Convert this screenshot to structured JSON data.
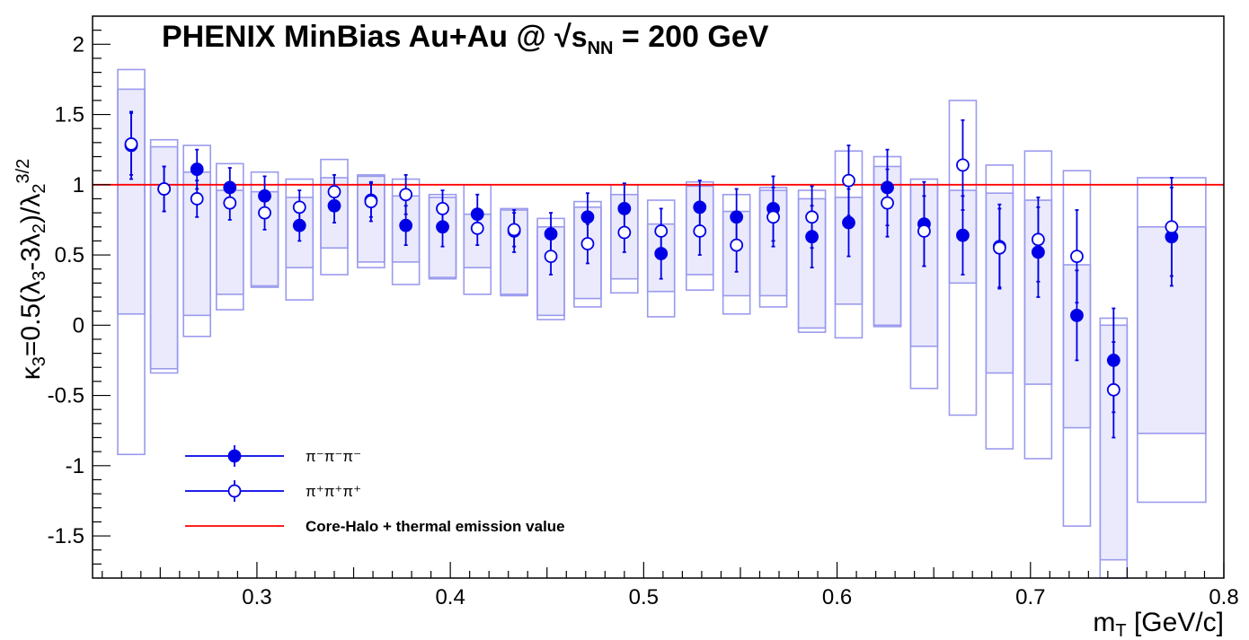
{
  "chart_data": {
    "type": "scatter",
    "title": "PHENIX MinBias Au+Au @ √s_NN = 200 GeV",
    "xlabel": "m_T [GeV/c]",
    "ylabel": "κ3=0.5(λ3-3λ2)/λ2^3/2",
    "xlim": [
      0.215,
      0.8
    ],
    "ylim": [
      -1.8,
      2.2
    ],
    "x_ticks": [
      0.3,
      0.4,
      0.5,
      0.6,
      0.7,
      0.8
    ],
    "x_tick_labels": [
      "0.3",
      "0.4",
      "0.5",
      "0.6",
      "0.7",
      "0.8"
    ],
    "y_ticks": [
      -1.5,
      -1,
      -0.5,
      0,
      0.5,
      1,
      1.5,
      2
    ],
    "y_tick_labels": [
      "-1.5",
      "-1",
      "-0.5",
      "0",
      "0.5",
      "1",
      "1.5",
      "2"
    ],
    "grid": false,
    "legend_position": "bottom-left",
    "reference_line": {
      "y": 1,
      "label": "Core-Halo + thermal emission value",
      "color": "#ff0000"
    },
    "series": [
      {
        "name": "π⁻π⁻π⁻",
        "marker": "filled-circle",
        "color": "#0000e6",
        "points": [
          {
            "x": 0.235,
            "y": 1.28,
            "err": 0.24,
            "sys_lo": 0.08,
            "sys_hi": 1.68
          },
          {
            "x": 0.252,
            "y": 0.97,
            "err": 0.16,
            "sys_lo": -0.31,
            "sys_hi": 1.27
          },
          {
            "x": 0.269,
            "y": 1.11,
            "err": 0.14,
            "sys_lo": 0.07,
            "sys_hi": 1.09
          },
          {
            "x": 0.286,
            "y": 0.98,
            "err": 0.14,
            "sys_lo": 0.22,
            "sys_hi": 0.96
          },
          {
            "x": 0.304,
            "y": 0.92,
            "err": 0.14,
            "sys_lo": 0.28,
            "sys_hi": 0.95
          },
          {
            "x": 0.322,
            "y": 0.71,
            "err": 0.11,
            "sys_lo": 0.41,
            "sys_hi": 0.91
          },
          {
            "x": 0.34,
            "y": 0.85,
            "err": 0.12,
            "sys_lo": 0.55,
            "sys_hi": 1.05
          },
          {
            "x": 0.359,
            "y": 0.89,
            "err": 0.12,
            "sys_lo": 0.45,
            "sys_hi": 1.06
          },
          {
            "x": 0.377,
            "y": 0.71,
            "err": 0.14,
            "sys_lo": 0.45,
            "sys_hi": 0.92
          },
          {
            "x": 0.396,
            "y": 0.7,
            "err": 0.14,
            "sys_lo": 0.34,
            "sys_hi": 0.91
          },
          {
            "x": 0.414,
            "y": 0.79,
            "err": 0.14,
            "sys_lo": 0.41,
            "sys_hi": 0.79
          },
          {
            "x": 0.433,
            "y": 0.67,
            "err": 0.15,
            "sys_lo": 0.22,
            "sys_hi": 0.82
          },
          {
            "x": 0.452,
            "y": 0.65,
            "err": 0.15,
            "sys_lo": 0.07,
            "sys_hi": 0.7
          },
          {
            "x": 0.471,
            "y": 0.77,
            "err": 0.17,
            "sys_lo": 0.19,
            "sys_hi": 0.84
          },
          {
            "x": 0.49,
            "y": 0.83,
            "err": 0.18,
            "sys_lo": 0.33,
            "sys_hi": 0.93
          },
          {
            "x": 0.509,
            "y": 0.51,
            "err": 0.18,
            "sys_lo": 0.24,
            "sys_hi": 0.72
          },
          {
            "x": 0.529,
            "y": 0.84,
            "err": 0.19,
            "sys_lo": 0.36,
            "sys_hi": 0.99
          },
          {
            "x": 0.548,
            "y": 0.77,
            "err": 0.2,
            "sys_lo": 0.21,
            "sys_hi": 0.81
          },
          {
            "x": 0.567,
            "y": 0.83,
            "err": 0.23,
            "sys_lo": 0.21,
            "sys_hi": 0.96
          },
          {
            "x": 0.587,
            "y": 0.63,
            "err": 0.22,
            "sys_lo": -0.02,
            "sys_hi": 0.9
          },
          {
            "x": 0.606,
            "y": 0.73,
            "err": 0.24,
            "sys_lo": 0.15,
            "sys_hi": 0.91
          },
          {
            "x": 0.626,
            "y": 0.98,
            "err": 0.27,
            "sys_lo": 0.0,
            "sys_hi": 1.13
          },
          {
            "x": 0.645,
            "y": 0.72,
            "err": 0.3,
            "sys_lo": -0.15,
            "sys_hi": 1.0
          },
          {
            "x": 0.665,
            "y": 0.64,
            "err": 0.28,
            "sys_lo": 0.3,
            "sys_hi": 0.96
          },
          {
            "x": 0.684,
            "y": 0.56,
            "err": 0.3,
            "sys_lo": -0.34,
            "sys_hi": 0.94
          },
          {
            "x": 0.704,
            "y": 0.52,
            "err": 0.32,
            "sys_lo": -0.42,
            "sys_hi": 0.89
          },
          {
            "x": 0.724,
            "y": 0.07,
            "err": 0.32,
            "sys_lo": -0.73,
            "sys_hi": 0.43
          },
          {
            "x": 0.743,
            "y": -0.25,
            "err": 0.37,
            "sys_lo": -1.67,
            "sys_hi": 0.0
          },
          {
            "x": 0.773,
            "y": 0.63,
            "err": 0.35,
            "sys_lo": -0.77,
            "sys_hi": 0.7
          }
        ]
      },
      {
        "name": "π⁺π⁺π⁺",
        "marker": "open-circle",
        "color": "#0000e6",
        "points": [
          {
            "x": 0.235,
            "y": 1.29,
            "err": 0.22,
            "sys_lo": -0.92,
            "sys_hi": 1.82
          },
          {
            "x": 0.252,
            "y": 0.97,
            "err": 0.16,
            "sys_lo": -0.34,
            "sys_hi": 1.32
          },
          {
            "x": 0.269,
            "y": 0.9,
            "err": 0.13,
            "sys_lo": -0.08,
            "sys_hi": 1.28
          },
          {
            "x": 0.286,
            "y": 0.87,
            "err": 0.12,
            "sys_lo": 0.11,
            "sys_hi": 1.15
          },
          {
            "x": 0.304,
            "y": 0.8,
            "err": 0.12,
            "sys_lo": 0.27,
            "sys_hi": 1.09
          },
          {
            "x": 0.322,
            "y": 0.84,
            "err": 0.12,
            "sys_lo": 0.18,
            "sys_hi": 1.04
          },
          {
            "x": 0.34,
            "y": 0.95,
            "err": 0.12,
            "sys_lo": 0.36,
            "sys_hi": 1.18
          },
          {
            "x": 0.359,
            "y": 0.88,
            "err": 0.14,
            "sys_lo": 0.41,
            "sys_hi": 1.07
          },
          {
            "x": 0.377,
            "y": 0.93,
            "err": 0.14,
            "sys_lo": 0.29,
            "sys_hi": 1.04
          },
          {
            "x": 0.396,
            "y": 0.83,
            "err": 0.13,
            "sys_lo": 0.33,
            "sys_hi": 0.93
          },
          {
            "x": 0.414,
            "y": 0.69,
            "err": 0.12,
            "sys_lo": 0.22,
            "sys_hi": 1.0
          },
          {
            "x": 0.433,
            "y": 0.68,
            "err": 0.12,
            "sys_lo": 0.21,
            "sys_hi": 0.83
          },
          {
            "x": 0.452,
            "y": 0.49,
            "err": 0.13,
            "sys_lo": 0.04,
            "sys_hi": 0.76
          },
          {
            "x": 0.471,
            "y": 0.58,
            "err": 0.14,
            "sys_lo": 0.13,
            "sys_hi": 0.88
          },
          {
            "x": 0.49,
            "y": 0.66,
            "err": 0.14,
            "sys_lo": 0.23,
            "sys_hi": 1.0
          },
          {
            "x": 0.509,
            "y": 0.67,
            "err": 0.16,
            "sys_lo": 0.06,
            "sys_hi": 0.89
          },
          {
            "x": 0.529,
            "y": 0.67,
            "err": 0.17,
            "sys_lo": 0.25,
            "sys_hi": 1.02
          },
          {
            "x": 0.548,
            "y": 0.57,
            "err": 0.19,
            "sys_lo": 0.08,
            "sys_hi": 0.93
          },
          {
            "x": 0.567,
            "y": 0.77,
            "err": 0.21,
            "sys_lo": 0.13,
            "sys_hi": 0.98
          },
          {
            "x": 0.587,
            "y": 0.77,
            "err": 0.22,
            "sys_lo": -0.05,
            "sys_hi": 0.96
          },
          {
            "x": 0.606,
            "y": 1.03,
            "err": 0.25,
            "sys_lo": -0.09,
            "sys_hi": 1.24
          },
          {
            "x": 0.626,
            "y": 0.87,
            "err": 0.24,
            "sys_lo": -0.01,
            "sys_hi": 1.2
          },
          {
            "x": 0.645,
            "y": 0.67,
            "err": 0.25,
            "sys_lo": -0.45,
            "sys_hi": 1.04
          },
          {
            "x": 0.665,
            "y": 1.14,
            "err": 0.32,
            "sys_lo": -0.64,
            "sys_hi": 1.6
          },
          {
            "x": 0.684,
            "y": 0.55,
            "err": 0.28,
            "sys_lo": -0.88,
            "sys_hi": 1.14
          },
          {
            "x": 0.704,
            "y": 0.61,
            "err": 0.3,
            "sys_lo": -0.95,
            "sys_hi": 1.24
          },
          {
            "x": 0.724,
            "y": 0.49,
            "err": 0.33,
            "sys_lo": -1.43,
            "sys_hi": 1.1
          },
          {
            "x": 0.743,
            "y": -0.46,
            "err": 0.34,
            "sys_lo": -1.8,
            "sys_hi": 0.05
          },
          {
            "x": 0.773,
            "y": 0.7,
            "err": 0.35,
            "sys_lo": -1.26,
            "sys_hi": 1.05
          }
        ]
      }
    ],
    "legend": [
      {
        "label": "π⁻π⁻π⁻",
        "type": "filled-marker"
      },
      {
        "label": "π⁺π⁺π⁺",
        "type": "open-marker"
      },
      {
        "label": "Core-Halo + thermal emission value",
        "type": "line"
      }
    ],
    "colors": {
      "marker": "#0000e6",
      "box_stroke": "#9a9aee",
      "box_fill": "#e6e6fb",
      "reference": "#ff0000"
    }
  }
}
